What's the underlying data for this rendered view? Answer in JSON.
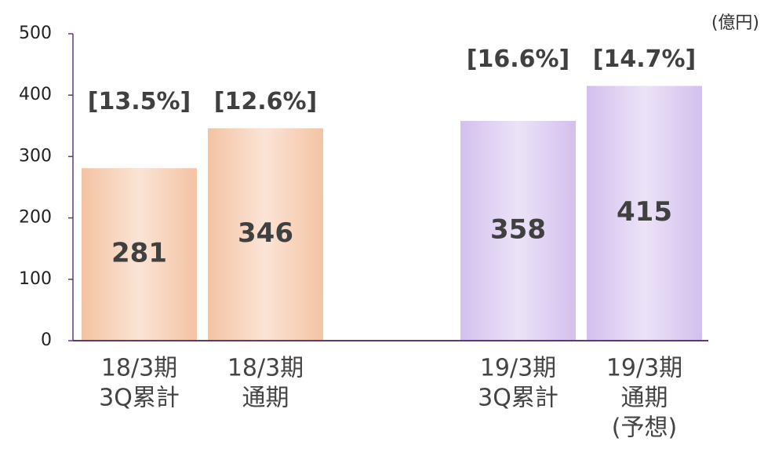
{
  "chart_data": {
    "type": "bar",
    "unit_label": "(億円)",
    "categories": [
      [
        "18/3期",
        "3Q累計"
      ],
      [
        "18/3期",
        "通期"
      ],
      [
        "19/3期",
        "3Q累計"
      ],
      [
        "19/3期",
        "通期",
        "(予想)"
      ]
    ],
    "values": [
      281,
      346,
      358,
      415
    ],
    "annotations": [
      "[13.5%]",
      "[12.6%]",
      "[16.6%]",
      "[14.7%]"
    ],
    "colors": [
      "#f4c3a3",
      "#f4c3a3",
      "#d3c0ee",
      "#d3c0ee"
    ],
    "ylim": [
      0,
      500
    ],
    "yticks": [
      0,
      100,
      200,
      300,
      400,
      500
    ],
    "grid": false
  }
}
